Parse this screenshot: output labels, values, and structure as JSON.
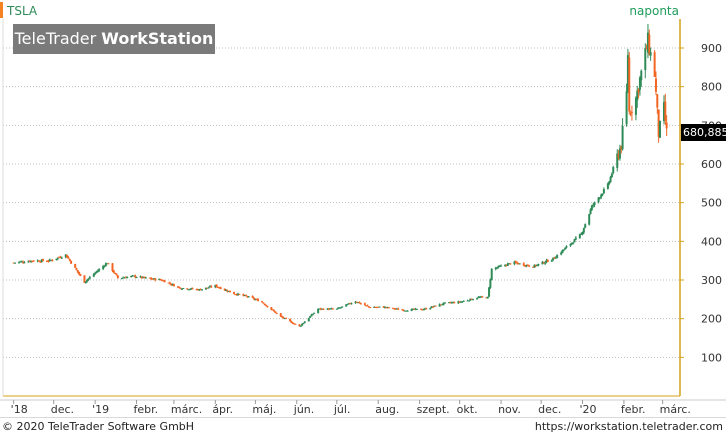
{
  "header": {
    "ticker": "TSLA",
    "period": "naponta",
    "brand_light": "TeleTrader ",
    "brand_bold": "WorkStation"
  },
  "last_price_label": "680,885",
  "footer": {
    "copyright": "© 2020 TeleTrader Software GmbH",
    "url": "https://workstation.teletrader.com"
  },
  "colors": {
    "up": "#2e8b57",
    "down": "#f26522",
    "axis": "#d4a017",
    "grid": "#bfbfbf"
  },
  "chart_data": {
    "type": "candlestick",
    "title": "TSLA",
    "y_ticks": [
      100,
      200,
      300,
      400,
      500,
      600,
      700,
      800,
      900
    ],
    "ylim": [
      0,
      975
    ],
    "grid": "horizontal dotted",
    "x_labels": [
      "'18",
      "dec.",
      "'19",
      "febr.",
      "márc.",
      "ápr.",
      "máj.",
      "jún.",
      "júl.",
      "aug.",
      "szept.",
      "okt.",
      "nov.",
      "dec.",
      "'20",
      "febr.",
      "márc."
    ],
    "x_dates": [
      "2018-11-01",
      "2018-12-01",
      "2019-01-01",
      "2019-02-01",
      "2019-03-01",
      "2019-04-01",
      "2019-05-01",
      "2019-06-01",
      "2019-07-01",
      "2019-08-01",
      "2019-09-01",
      "2019-10-01",
      "2019-11-01",
      "2019-12-01",
      "2020-01-01",
      "2020-02-01",
      "2020-03-01"
    ],
    "close_path": [
      [
        "2018-11-01",
        345
      ],
      [
        "2018-11-15",
        350
      ],
      [
        "2018-11-28",
        350
      ],
      [
        "2018-12-10",
        365
      ],
      [
        "2018-12-24",
        295
      ],
      [
        "2019-01-10",
        345
      ],
      [
        "2019-01-18",
        305
      ],
      [
        "2019-01-30",
        310
      ],
      [
        "2019-02-07",
        305
      ],
      [
        "2019-02-20",
        300
      ],
      [
        "2019-03-05",
        280
      ],
      [
        "2019-03-20",
        275
      ],
      [
        "2019-04-01",
        285
      ],
      [
        "2019-04-15",
        265
      ],
      [
        "2019-04-24",
        258
      ],
      [
        "2019-05-05",
        245
      ],
      [
        "2019-05-20",
        205
      ],
      [
        "2019-06-03",
        180
      ],
      [
        "2019-06-17",
        225
      ],
      [
        "2019-07-01",
        225
      ],
      [
        "2019-07-15",
        245
      ],
      [
        "2019-07-25",
        230
      ],
      [
        "2019-08-05",
        230
      ],
      [
        "2019-08-20",
        222
      ],
      [
        "2019-09-05",
        225
      ],
      [
        "2019-09-20",
        240
      ],
      [
        "2019-10-01",
        243
      ],
      [
        "2019-10-15",
        255
      ],
      [
        "2019-10-22",
        255
      ],
      [
        "2019-10-25",
        328
      ],
      [
        "2019-11-10",
        345
      ],
      [
        "2019-11-25",
        335
      ],
      [
        "2019-12-10",
        355
      ],
      [
        "2019-12-31",
        418
      ],
      [
        "2020-01-08",
        490
      ],
      [
        "2020-01-20",
        545
      ],
      [
        "2020-01-30",
        650
      ],
      [
        "2020-02-03",
        780
      ],
      [
        "2020-02-04",
        887
      ],
      [
        "2020-02-05",
        734
      ],
      [
        "2020-02-10",
        770
      ],
      [
        "2020-02-19",
        917
      ],
      [
        "2020-02-24",
        833
      ],
      [
        "2020-02-27",
        679
      ],
      [
        "2020-03-02",
        743
      ],
      [
        "2020-03-04",
        680.885
      ]
    ],
    "last_value": 680.885
  }
}
